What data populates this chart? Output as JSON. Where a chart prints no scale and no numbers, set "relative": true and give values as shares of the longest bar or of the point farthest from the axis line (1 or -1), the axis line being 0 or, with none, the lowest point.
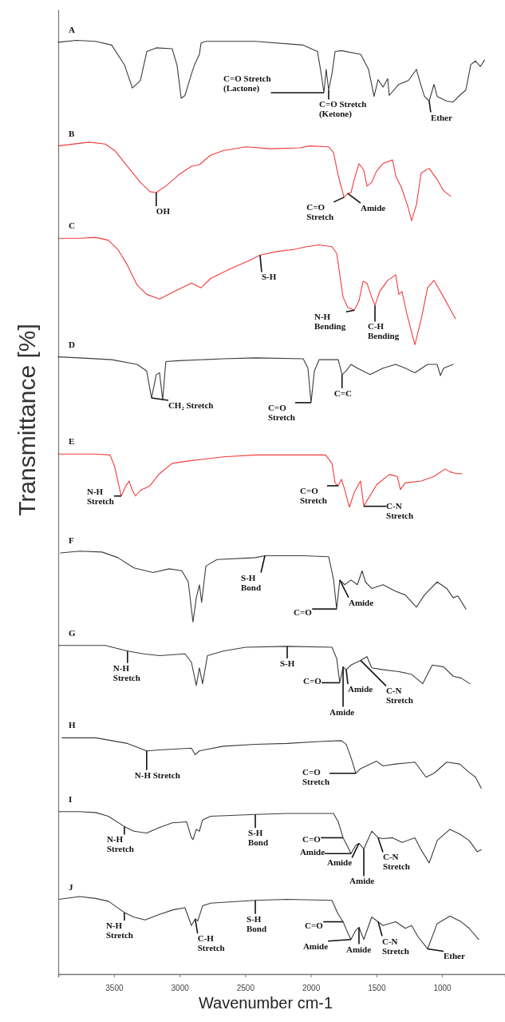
{
  "chart_data": {
    "type": "line",
    "relative": true,
    "xlabel": "Wavenumber cm-1",
    "ylabel": "Transmittance [%]",
    "xlim": [
      3925,
      520
    ],
    "xticks": [
      3500,
      3000,
      2500,
      2000,
      1500,
      1000
    ],
    "grid": false,
    "legend": false,
    "marker": "none",
    "line_style": "solid",
    "series": [
      {
        "name": "A",
        "color": "#3c3c3c",
        "x": [
          3925,
          3786,
          3640,
          3518,
          3421,
          3360,
          3299,
          3250,
          3178,
          3056,
          3019,
          2988,
          2959,
          2910,
          2886,
          2849,
          2837,
          2801,
          2423,
          2058,
          1949,
          1924,
          1900,
          1883,
          1864,
          1839,
          1815,
          1766,
          1620,
          1560,
          1518,
          1487,
          1450,
          1414,
          1402,
          1329,
          1256,
          1195,
          1171,
          1134,
          1098,
          1061,
          1037,
          964,
          915,
          866,
          818,
          781,
          745,
          708,
          676
        ],
        "values": [
          0.998,
          1.0,
          0.999,
          0.995,
          0.974,
          0.949,
          0.957,
          0.988,
          0.992,
          0.991,
          0.973,
          0.938,
          0.941,
          0.964,
          0.974,
          0.985,
          0.997,
          0.999,
          0.999,
          0.995,
          0.988,
          0.967,
          0.944,
          0.969,
          0.947,
          0.964,
          0.988,
          0.989,
          0.985,
          0.969,
          0.94,
          0.958,
          0.95,
          0.959,
          0.941,
          0.953,
          0.957,
          0.969,
          0.957,
          0.94,
          0.935,
          0.953,
          0.94,
          0.935,
          0.934,
          0.941,
          0.947,
          0.974,
          0.978,
          0.972,
          0.979
        ]
      },
      {
        "name": "B",
        "color": "#f03c3c",
        "x": [
          3925,
          3689,
          3567,
          3494,
          3397,
          3299,
          3226,
          3178,
          3105,
          3007,
          2910,
          2849,
          2764,
          2667,
          2496,
          2302,
          2083,
          2010,
          1864,
          1827,
          1791,
          1747,
          1718,
          1694,
          1669,
          1633,
          1596,
          1572,
          1536,
          1499,
          1450,
          1377,
          1353,
          1305,
          1256,
          1232,
          1195,
          1159,
          1098,
          1037,
          988,
          935
        ],
        "values": [
          0.887,
          0.891,
          0.889,
          0.882,
          0.865,
          0.848,
          0.838,
          0.837,
          0.844,
          0.856,
          0.865,
          0.867,
          0.877,
          0.882,
          0.886,
          0.884,
          0.885,
          0.887,
          0.886,
          0.88,
          0.855,
          0.832,
          0.836,
          0.837,
          0.851,
          0.868,
          0.861,
          0.844,
          0.848,
          0.86,
          0.868,
          0.872,
          0.855,
          0.841,
          0.82,
          0.807,
          0.824,
          0.858,
          0.863,
          0.851,
          0.839,
          0.833
        ]
      },
      {
        "name": "C",
        "color": "#f03c3c",
        "x": [
          3925,
          3762,
          3640,
          3543,
          3470,
          3397,
          3324,
          3251,
          3153,
          3056,
          2910,
          2837,
          2764,
          2618,
          2472,
          2387,
          2253,
          2131,
          2034,
          1937,
          1839,
          1803,
          1779,
          1754,
          1718,
          1669,
          1633,
          1602,
          1572,
          1536,
          1511,
          1475,
          1414,
          1353,
          1329,
          1305,
          1268,
          1207,
          1159,
          1110,
          1061,
          988,
          898
        ],
        "values": [
          0.788,
          0.788,
          0.789,
          0.786,
          0.776,
          0.759,
          0.738,
          0.728,
          0.723,
          0.73,
          0.74,
          0.735,
          0.745,
          0.755,
          0.764,
          0.77,
          0.774,
          0.776,
          0.779,
          0.781,
          0.779,
          0.772,
          0.749,
          0.725,
          0.714,
          0.711,
          0.721,
          0.742,
          0.74,
          0.725,
          0.716,
          0.731,
          0.743,
          0.749,
          0.728,
          0.731,
          0.707,
          0.674,
          0.701,
          0.735,
          0.743,
          0.725,
          0.702
        ]
      },
      {
        "name": "D",
        "color": "#3c3c3c",
        "x": [
          3925,
          3762,
          3518,
          3324,
          3251,
          3214,
          3178,
          3153,
          3129,
          3105,
          3007,
          2667,
          2423,
          2058,
          2022,
          1998,
          1973,
          1937,
          1791,
          1762,
          1730,
          1694,
          1645,
          1548,
          1450,
          1353,
          1280,
          1207,
          1110,
          1037,
          1012,
          988,
          915
        ],
        "values": [
          0.661,
          0.66,
          0.658,
          0.653,
          0.646,
          0.617,
          0.642,
          0.644,
          0.615,
          0.656,
          0.657,
          0.659,
          0.66,
          0.659,
          0.649,
          0.612,
          0.646,
          0.658,
          0.658,
          0.642,
          0.646,
          0.653,
          0.649,
          0.642,
          0.649,
          0.653,
          0.649,
          0.644,
          0.653,
          0.653,
          0.641,
          0.649,
          0.653
        ]
      },
      {
        "name": "E",
        "color": "#f03c3c",
        "x": [
          3925,
          3640,
          3530,
          3494,
          3445,
          3409,
          3384,
          3360,
          3336,
          3299,
          3226,
          3153,
          3056,
          2910,
          2667,
          2423,
          2034,
          1888,
          1839,
          1815,
          1791,
          1767,
          1742,
          1706,
          1669,
          1621,
          1596,
          1572,
          1499,
          1402,
          1341,
          1317,
          1280,
          1159,
          1061,
          976,
          940,
          891,
          847
        ],
        "values": [
          0.557,
          0.557,
          0.556,
          0.543,
          0.512,
          0.523,
          0.528,
          0.518,
          0.512,
          0.518,
          0.523,
          0.536,
          0.547,
          0.55,
          0.554,
          0.556,
          0.556,
          0.556,
          0.547,
          0.526,
          0.523,
          0.53,
          0.519,
          0.5,
          0.516,
          0.528,
          0.501,
          0.507,
          0.524,
          0.535,
          0.533,
          0.519,
          0.526,
          0.528,
          0.533,
          0.541,
          0.538,
          0.536,
          0.536
        ]
      },
      {
        "name": "F",
        "color": "#3c3c3c",
        "x": [
          3908,
          3762,
          3591,
          3470,
          3348,
          3202,
          3080,
          2983,
          2934,
          2898,
          2873,
          2849,
          2832,
          2800,
          2715,
          2423,
          2350,
          2058,
          1864,
          1827,
          1803,
          1779,
          1742,
          1694,
          1645,
          1609,
          1584,
          1536,
          1450,
          1353,
          1280,
          1195,
          1134,
          1037,
          964,
          915,
          879,
          818
        ],
        "values": [
          0.451,
          0.453,
          0.452,
          0.446,
          0.435,
          0.43,
          0.434,
          0.432,
          0.42,
          0.377,
          0.403,
          0.417,
          0.398,
          0.437,
          0.444,
          0.446,
          0.448,
          0.448,
          0.447,
          0.423,
          0.391,
          0.422,
          0.417,
          0.422,
          0.417,
          0.432,
          0.42,
          0.413,
          0.417,
          0.41,
          0.406,
          0.393,
          0.406,
          0.42,
          0.413,
          0.403,
          0.405,
          0.391
        ]
      },
      {
        "name": "G",
        "color": "#3c3c3c",
        "x": [
          3920,
          3762,
          3567,
          3397,
          3275,
          3153,
          2959,
          2910,
          2873,
          2849,
          2825,
          2788,
          2667,
          2496,
          2180,
          1839,
          1803,
          1779,
          1754,
          1730,
          1694,
          1621,
          1572,
          1536,
          1450,
          1329,
          1232,
          1147,
          1074,
          988,
          915,
          854,
          788
        ],
        "values": [
          0.352,
          0.352,
          0.352,
          0.346,
          0.343,
          0.341,
          0.343,
          0.334,
          0.309,
          0.328,
          0.311,
          0.341,
          0.346,
          0.35,
          0.351,
          0.35,
          0.338,
          0.312,
          0.329,
          0.326,
          0.331,
          0.336,
          0.34,
          0.328,
          0.326,
          0.324,
          0.321,
          0.311,
          0.331,
          0.329,
          0.319,
          0.317,
          0.311
        ]
      },
      {
        "name": "H",
        "color": "#3c3c3c",
        "x": [
          3896,
          3640,
          3397,
          3251,
          3153,
          2910,
          2881,
          2849,
          2813,
          2667,
          2423,
          2180,
          1937,
          1767,
          1730,
          1694,
          1657,
          1621,
          1499,
          1450,
          1353,
          1207,
          1122,
          1061,
          964,
          866,
          793,
          745,
          701
        ],
        "values": [
          0.253,
          0.253,
          0.247,
          0.239,
          0.24,
          0.242,
          0.235,
          0.239,
          0.24,
          0.244,
          0.246,
          0.247,
          0.249,
          0.25,
          0.246,
          0.232,
          0.215,
          0.22,
          0.228,
          0.223,
          0.225,
          0.227,
          0.211,
          0.215,
          0.227,
          0.225,
          0.216,
          0.211,
          0.199
        ]
      },
      {
        "name": "I",
        "color": "#3c3c3c",
        "x": [
          3920,
          3762,
          3640,
          3543,
          3421,
          3348,
          3251,
          3153,
          3056,
          2946,
          2910,
          2898,
          2873,
          2849,
          2825,
          2764,
          2423,
          2180,
          1827,
          1791,
          1754,
          1718,
          1694,
          1657,
          1633,
          1596,
          1536,
          1487,
          1450,
          1377,
          1305,
          1207,
          1159,
          1098,
          1037,
          940,
          866,
          793,
          732,
          701
        ],
        "values": [
          0.174,
          0.174,
          0.173,
          0.169,
          0.158,
          0.153,
          0.151,
          0.157,
          0.162,
          0.163,
          0.146,
          0.144,
          0.155,
          0.153,
          0.165,
          0.169,
          0.171,
          0.172,
          0.172,
          0.163,
          0.146,
          0.136,
          0.129,
          0.138,
          0.14,
          0.134,
          0.153,
          0.146,
          0.145,
          0.146,
          0.141,
          0.146,
          0.133,
          0.119,
          0.143,
          0.155,
          0.15,
          0.143,
          0.131,
          0.133
        ]
      },
      {
        "name": "J",
        "color": "#3c3c3c",
        "x": [
          3920,
          3762,
          3640,
          3543,
          3421,
          3348,
          3263,
          3153,
          3044,
          2959,
          2910,
          2881,
          2861,
          2825,
          2764,
          2423,
          2180,
          1839,
          1791,
          1754,
          1718,
          1694,
          1657,
          1633,
          1596,
          1536,
          1487,
          1450,
          1353,
          1280,
          1232,
          1183,
          1110,
          1037,
          940,
          854,
          793,
          720
        ],
        "values": [
          0.08,
          0.083,
          0.081,
          0.078,
          0.066,
          0.061,
          0.058,
          0.064,
          0.069,
          0.071,
          0.052,
          0.059,
          0.057,
          0.073,
          0.076,
          0.079,
          0.08,
          0.079,
          0.064,
          0.056,
          0.044,
          0.037,
          0.047,
          0.05,
          0.037,
          0.061,
          0.056,
          0.052,
          0.056,
          0.049,
          0.052,
          0.04,
          0.027,
          0.054,
          0.062,
          0.056,
          0.049,
          0.037
        ]
      }
    ],
    "annotations": [
      {
        "text": "C=O Stretch\n(Lactone)",
        "x": 1900,
        "y": 0.944
      },
      {
        "text": "C=O Stretch\n(Ketone)",
        "x": 1864,
        "y": 0.947
      },
      {
        "text": "Ether",
        "x": 1098,
        "y": 0.935
      },
      {
        "text": "OH",
        "x": 3178,
        "y": 0.837
      },
      {
        "text": "C=O\nStretch",
        "x": 1747,
        "y": 0.832
      },
      {
        "text": "Amide",
        "x": 1718,
        "y": 0.836
      },
      {
        "text": "S-H",
        "x": 2387,
        "y": 0.77
      },
      {
        "text": "N-H\nBending",
        "x": 1669,
        "y": 0.711
      },
      {
        "text": "C-H\nBending",
        "x": 1511,
        "y": 0.716
      },
      {
        "text": "CH₂ Stretch",
        "x": 3214,
        "y": 0.617
      },
      {
        "text": "C=O\nStretch",
        "x": 1998,
        "y": 0.612
      },
      {
        "text": "C=C",
        "x": 1762,
        "y": 0.642
      },
      {
        "text": "N-H\nStretch",
        "x": 3445,
        "y": 0.512
      },
      {
        "text": "C=O\nStretch",
        "x": 1791,
        "y": 0.523
      },
      {
        "text": "C-N\nStretch",
        "x": 1596,
        "y": 0.501
      },
      {
        "text": "S-H\nBond",
        "x": 2350,
        "y": 0.448
      },
      {
        "text": "C=O",
        "x": 1803,
        "y": 0.391
      },
      {
        "text": "Amide",
        "x": 1779,
        "y": 0.422
      },
      {
        "text": "N-H\nStretch",
        "x": 3397,
        "y": 0.346
      },
      {
        "text": "S-H",
        "x": 2180,
        "y": 0.351
      },
      {
        "text": "C=O",
        "x": 1779,
        "y": 0.312
      },
      {
        "text": "Amide",
        "x": 1754,
        "y": 0.329
      },
      {
        "text": "Amide",
        "x": 1730,
        "y": 0.326
      },
      {
        "text": "C-N\nStretch",
        "x": 1621,
        "y": 0.336
      },
      {
        "text": "N-H Stretch",
        "x": 3251,
        "y": 0.239
      },
      {
        "text": "C=O\nStretch",
        "x": 1657,
        "y": 0.215
      },
      {
        "text": "N-H\nStretch",
        "x": 3421,
        "y": 0.158
      },
      {
        "text": "S-H\nBond",
        "x": 2423,
        "y": 0.171
      },
      {
        "text": "C=O",
        "x": 1754,
        "y": 0.146
      },
      {
        "text": "Amide",
        "x": 1694,
        "y": 0.129
      },
      {
        "text": "Amide",
        "x": 1633,
        "y": 0.14
      },
      {
        "text": "Amide",
        "x": 1596,
        "y": 0.134
      },
      {
        "text": "C-N\nStretch",
        "x": 1487,
        "y": 0.146
      },
      {
        "text": "N-H\nStretch",
        "x": 3421,
        "y": 0.066
      },
      {
        "text": "C-H\nStretch",
        "x": 2881,
        "y": 0.059
      },
      {
        "text": "S-H\nBond",
        "x": 2423,
        "y": 0.079
      },
      {
        "text": "C=O",
        "x": 1754,
        "y": 0.056
      },
      {
        "text": "Amide",
        "x": 1694,
        "y": 0.037
      },
      {
        "text": "Amide",
        "x": 1633,
        "y": 0.05
      },
      {
        "text": "C-N\nStretch",
        "x": 1487,
        "y": 0.056
      },
      {
        "text": "Ether",
        "x": 1110,
        "y": 0.027
      }
    ]
  }
}
